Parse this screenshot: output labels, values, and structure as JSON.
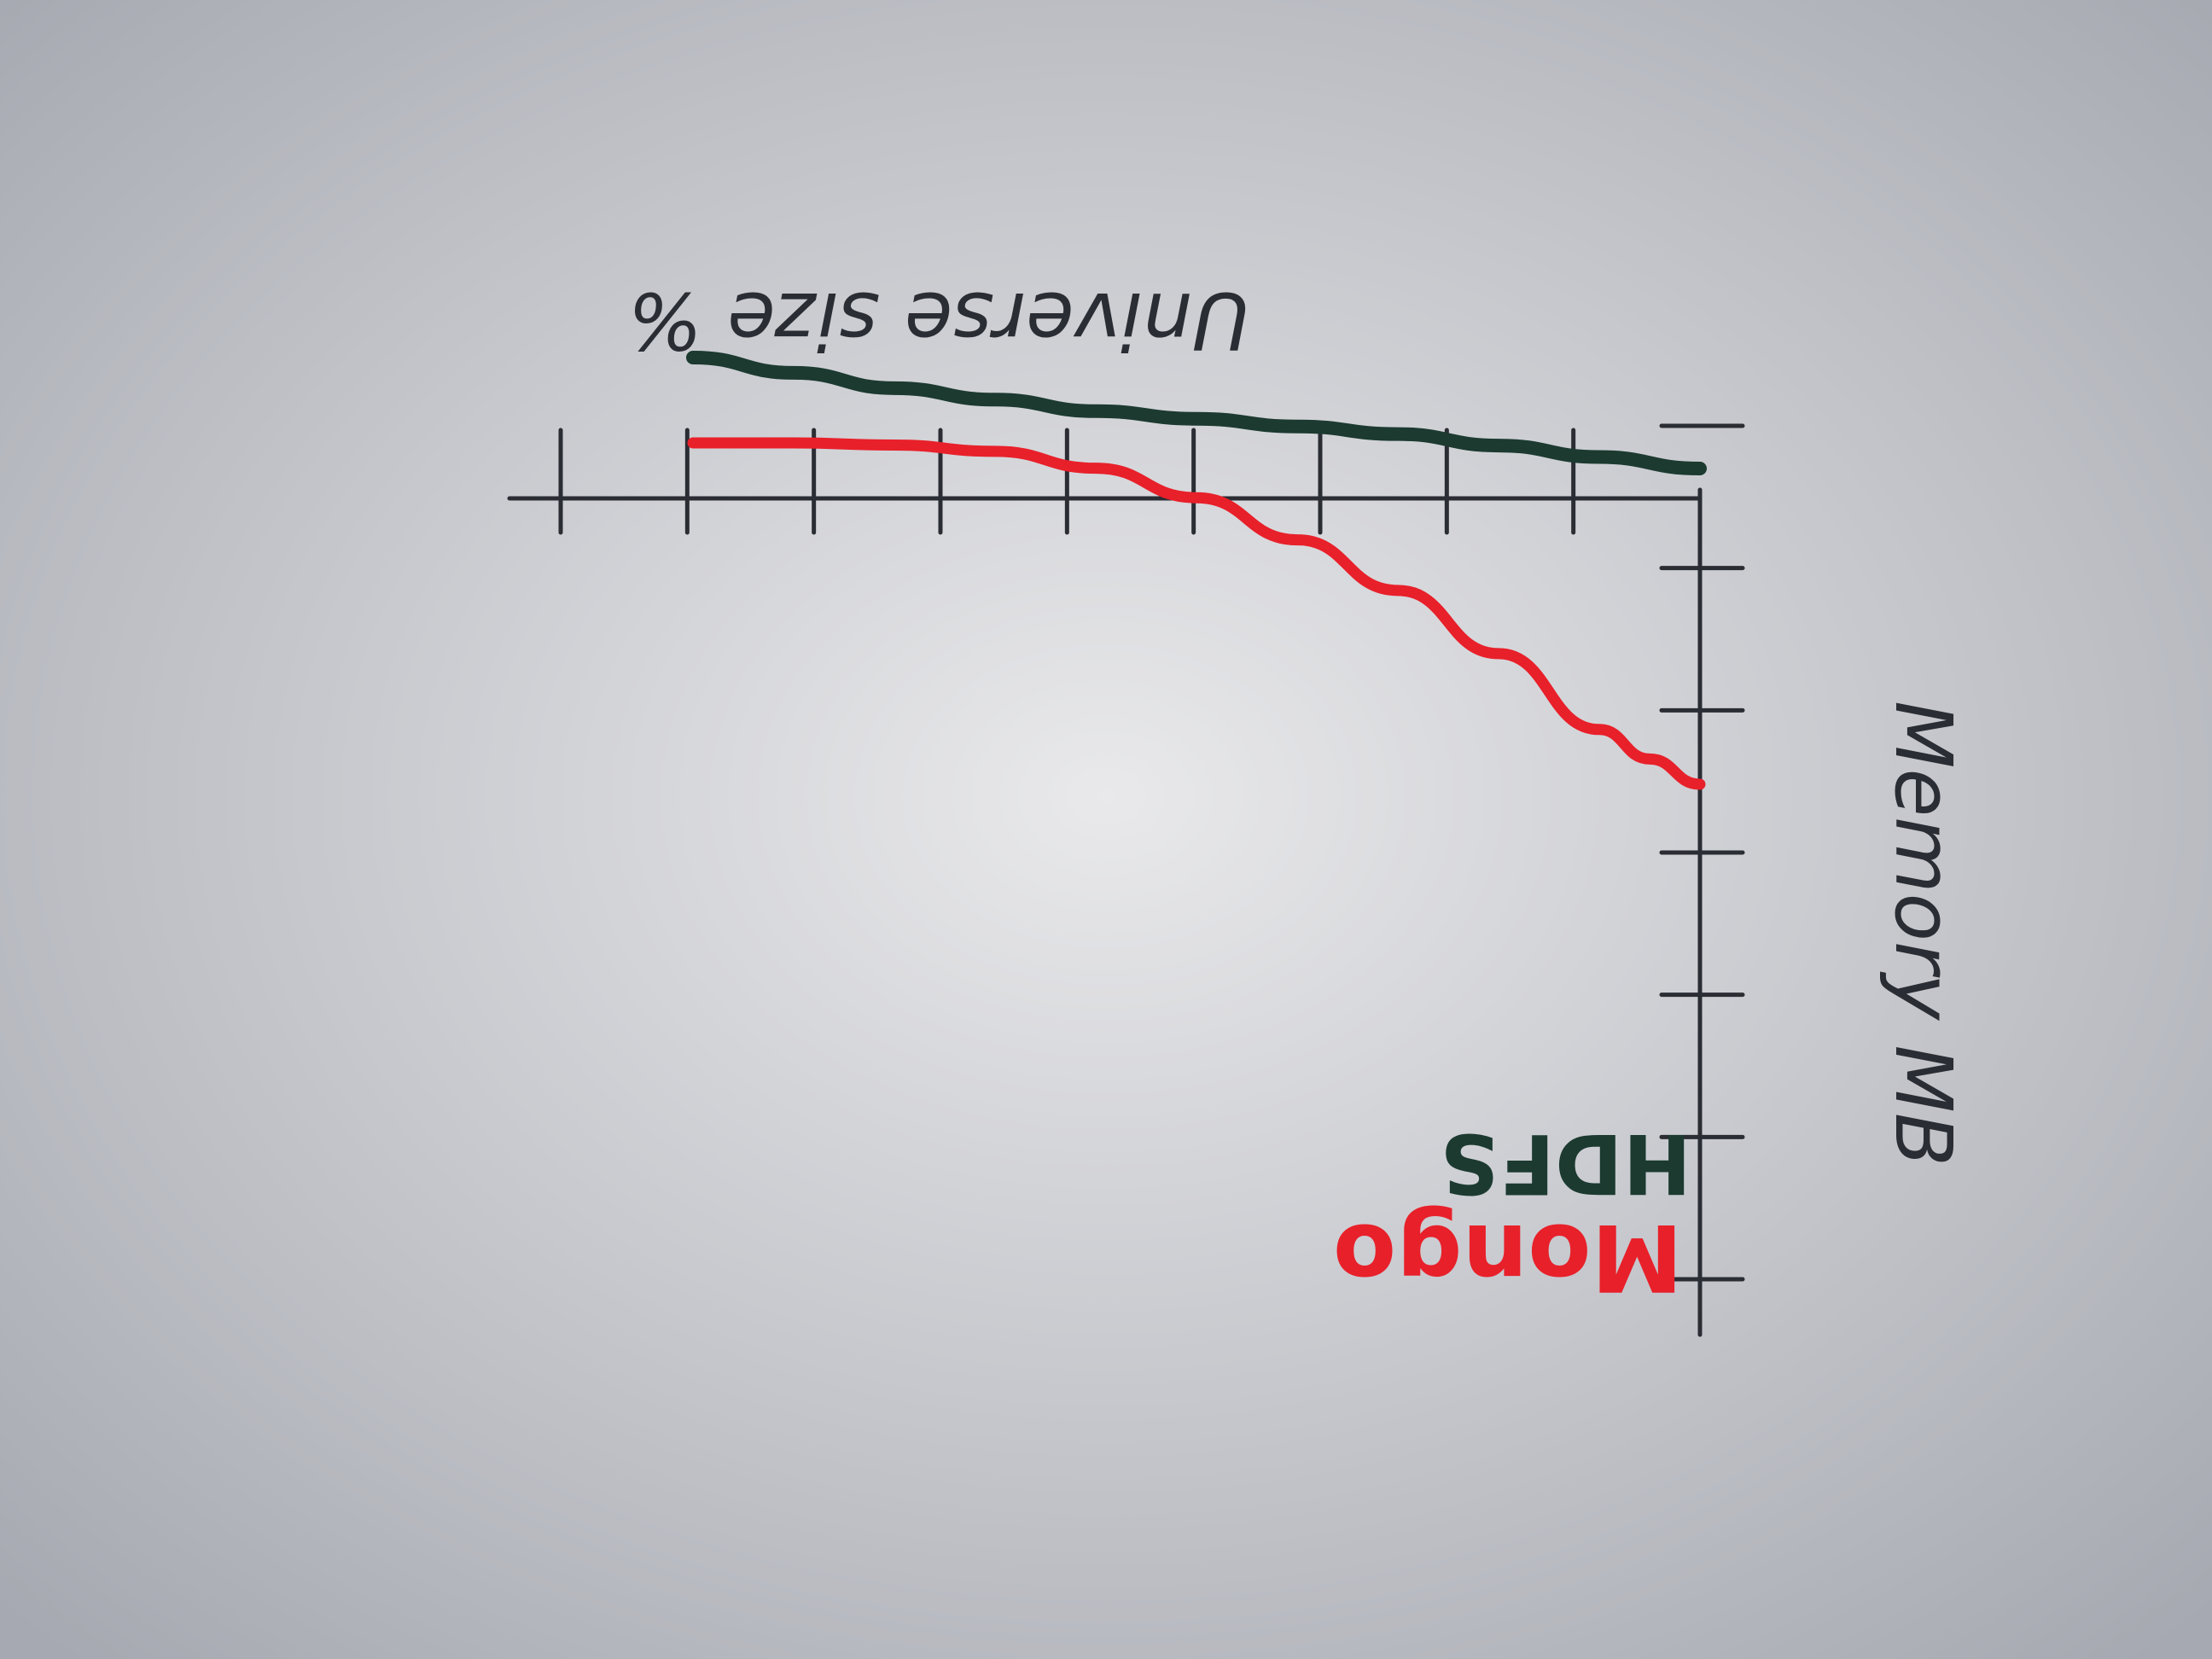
{
  "chart_data": {
    "type": "line",
    "orientation": "rotated-180",
    "xlabel": "Universe size %",
    "ylabel": "Memory MB",
    "x_ticks": 9,
    "y_ticks": 7,
    "xlim": [
      0,
      100
    ],
    "ylim": [
      0,
      100
    ],
    "series": [
      {
        "name": "HDFS",
        "color": "#1c3a30",
        "values": [
          {
            "x": 0,
            "y": 88
          },
          {
            "x": 10,
            "y": 86.5
          },
          {
            "x": 20,
            "y": 85
          },
          {
            "x": 30,
            "y": 83.5
          },
          {
            "x": 40,
            "y": 82.5
          },
          {
            "x": 50,
            "y": 81.5
          },
          {
            "x": 60,
            "y": 80.5
          },
          {
            "x": 70,
            "y": 79
          },
          {
            "x": 80,
            "y": 77.5
          },
          {
            "x": 90,
            "y": 75.5
          },
          {
            "x": 100,
            "y": 73.5
          }
        ]
      },
      {
        "name": "Mongo",
        "color": "#e8202a",
        "values": [
          {
            "x": 0,
            "y": 81
          },
          {
            "x": 5,
            "y": 75
          },
          {
            "x": 10,
            "y": 68
          },
          {
            "x": 20,
            "y": 50
          },
          {
            "x": 30,
            "y": 35
          },
          {
            "x": 40,
            "y": 23
          },
          {
            "x": 50,
            "y": 13
          },
          {
            "x": 60,
            "y": 6
          },
          {
            "x": 70,
            "y": 2
          },
          {
            "x": 80,
            "y": 0.5
          },
          {
            "x": 90,
            "y": 0
          },
          {
            "x": 100,
            "y": 0
          }
        ]
      }
    ],
    "legend": {
      "placement": "near-origin",
      "entries": [
        "HDFS",
        "Mongo"
      ]
    }
  },
  "colors": {
    "paper_center": "#e9e9eb",
    "paper_edge": "#a6a9b1",
    "ink": "#2a2d33"
  }
}
